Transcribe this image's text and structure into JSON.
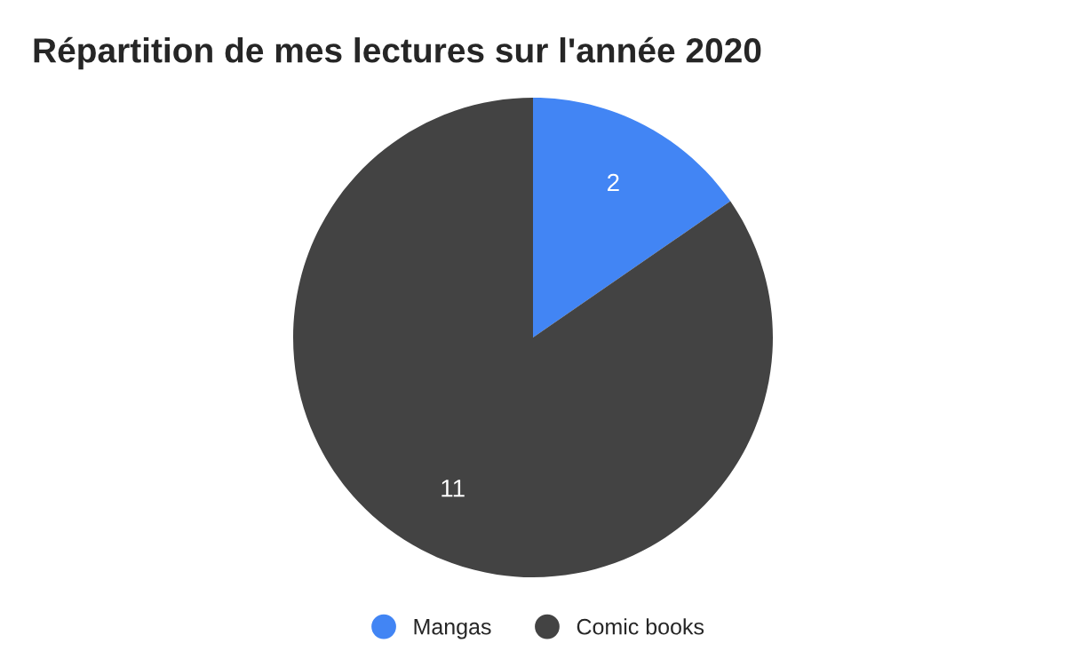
{
  "chart_data": {
    "type": "pie",
    "title": "Répartition de mes lectures sur l'année 2020",
    "categories": [
      "Mangas",
      "Comic books"
    ],
    "values": [
      2,
      11
    ],
    "colors": [
      "#4285f4",
      "#434343"
    ],
    "data_labels": true,
    "legend": "bottom"
  }
}
